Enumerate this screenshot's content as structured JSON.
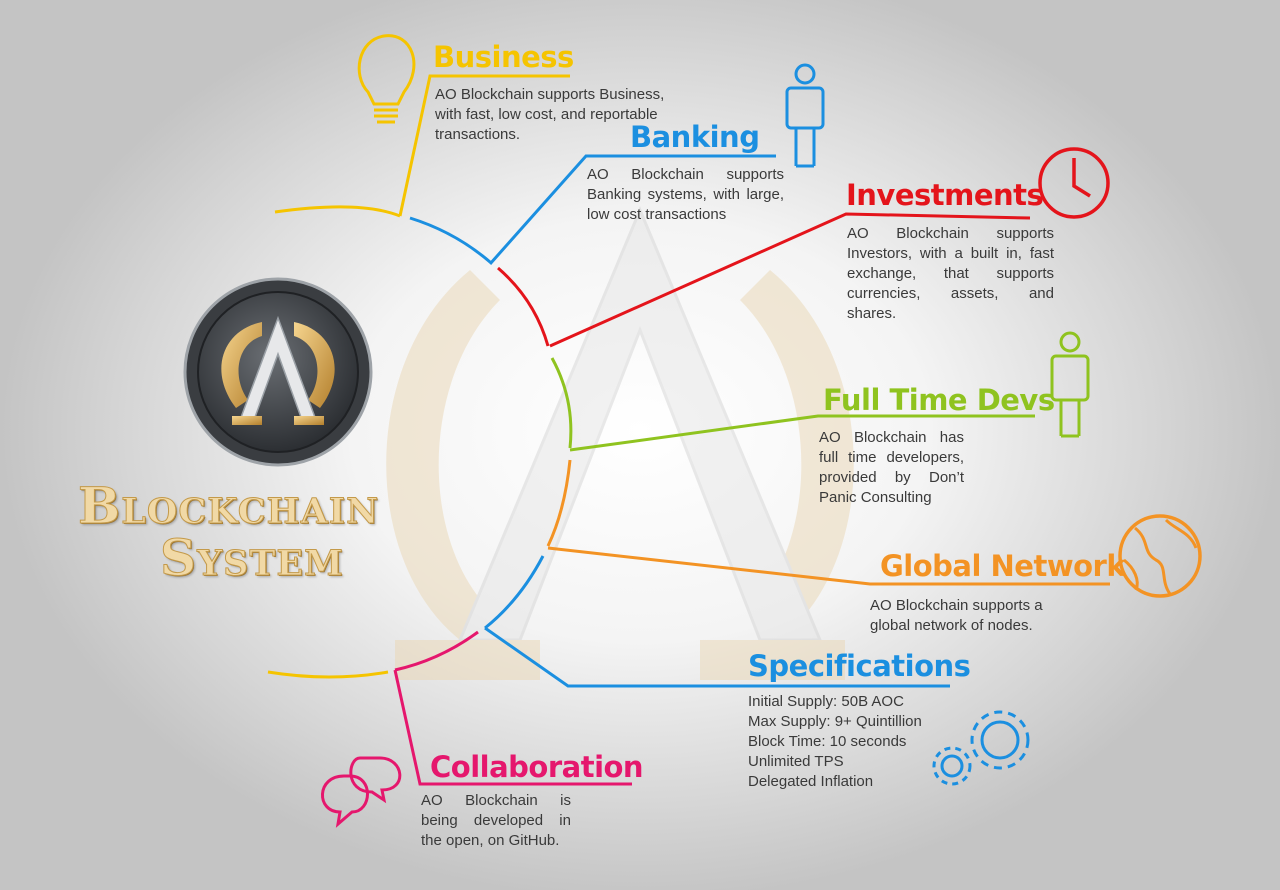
{
  "brand": {
    "line1": "Blockchain",
    "line2": "System"
  },
  "colors": {
    "business": "#f5c400",
    "banking": "#1b8fe0",
    "investments": "#e4141b",
    "devs": "#8fc31f",
    "global": "#f39324",
    "specs": "#1b8fe0",
    "collab": "#e5176d"
  },
  "sections": {
    "business": {
      "title": "Business",
      "text": "AO Blockchain supports Business, with fast, low cost, and reportable transactions.",
      "icon": "lightbulb-icon"
    },
    "banking": {
      "title": "Banking",
      "text": "AO Blockchain supports Banking systems, with large, low cost transactions",
      "icon": "person-icon"
    },
    "investments": {
      "title": "Investments",
      "text": "AO Blockchain supports Investors, with a built in, fast exchange, that supports currencies, assets, and shares.",
      "icon": "clock-icon"
    },
    "devs": {
      "title": "Full Time Devs",
      "text": "AO Blockchain has full time developers, provided by Don’t Panic Consulting",
      "icon": "person-icon"
    },
    "global": {
      "title": "Global Network",
      "text": "AO Blockchain supports a global network of nodes.",
      "icon": "globe-icon"
    },
    "specs": {
      "title": "Specifications",
      "lines": [
        "Initial Supply: 50B AOC",
        "Max Supply: 9+ Quintillion",
        "Block Time: 10 seconds",
        "Unlimited TPS",
        "Delegated Inflation"
      ],
      "icon": "gears-icon"
    },
    "collab": {
      "title": "Collaboration",
      "text": "AO Blockchain is being developed in the open, on GitHub.",
      "icon": "chat-bubbles-icon"
    }
  }
}
